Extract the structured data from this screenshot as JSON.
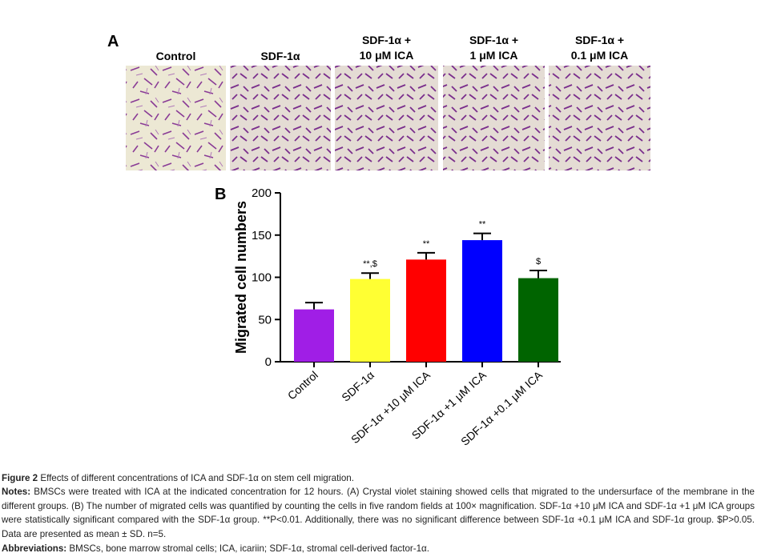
{
  "panel_a": {
    "label": "A",
    "columns": [
      "Control",
      "SDF-1α",
      "SDF-1α +\n10 μM ICA",
      "SDF-1α +\n1 μM ICA",
      "SDF-1α +\n0.1 μM ICA"
    ]
  },
  "panel_b": {
    "label": "B",
    "chart_data": {
      "type": "bar",
      "ylabel": "Migrated cell numbers",
      "categories": [
        "Control",
        "SDF-1α",
        "SDF-1α +10 μM ICA",
        "SDF-1α +1 μM ICA",
        "SDF-1α +0.1 μM ICA"
      ],
      "values": [
        62,
        98,
        121,
        144,
        99
      ],
      "errors": [
        8,
        7,
        8,
        8,
        9
      ],
      "colors": [
        "#a01ee6",
        "#ffff33",
        "#ff0000",
        "#0000ff",
        "#006400"
      ],
      "annotations": [
        null,
        "**,$",
        "**",
        "**",
        "$"
      ],
      "ylim": [
        0,
        200
      ],
      "yticks": [
        0,
        50,
        100,
        150,
        200
      ]
    }
  },
  "caption": {
    "figure": "Figure 2",
    "title": "Effects of different concentrations of ICA and SDF-1α on stem cell migration.",
    "notes_label": "Notes:",
    "notes": "BMSCs were treated with ICA at the indicated concentration for 12 hours. (A) Crystal violet staining showed cells that migrated to the undersurface of the membrane in the different groups. (B) The number of migrated cells was quantified by counting the cells in five random fields at 100× magnification. SDF-1α +10 μM ICA and SDF-1α +1 μM ICA groups were statistically significant compared with the SDF-1α group. **P<0.01. Additionally, there was no significant difference between SDF-1α +0.1 μM ICA and SDF-1α group. $P>0.05. Data are presented as mean ± SD. n=5.",
    "abbr_label": "Abbreviations:",
    "abbr": "BMSCs, bone marrow stromal cells; ICA, icariin; SDF-1α, stromal cell-derived factor-1α."
  }
}
